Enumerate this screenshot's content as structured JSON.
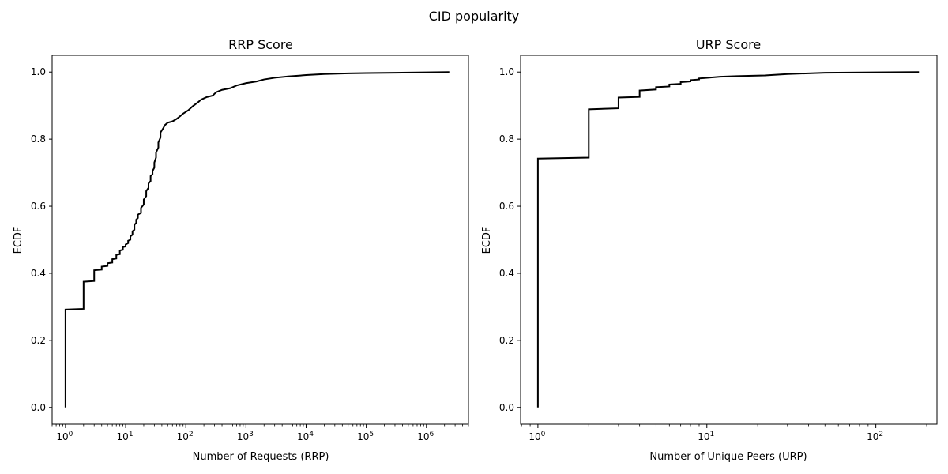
{
  "figure_title": "CID popularity",
  "chart_data": [
    {
      "type": "line",
      "title": "RRP Score",
      "xlabel": "Number of Requests (RRP)",
      "ylabel": "ECDF",
      "xscale": "log",
      "xlim": [
        0.6,
        5000000
      ],
      "ylim": [
        -0.05,
        1.05
      ],
      "xticks": [
        {
          "value": 1,
          "base": "10",
          "exp": "0"
        },
        {
          "value": 10,
          "base": "10",
          "exp": "1"
        },
        {
          "value": 100,
          "base": "10",
          "exp": "2"
        },
        {
          "value": 1000,
          "base": "10",
          "exp": "3"
        },
        {
          "value": 10000,
          "base": "10",
          "exp": "4"
        },
        {
          "value": 100000,
          "base": "10",
          "exp": "5"
        },
        {
          "value": 1000000,
          "base": "10",
          "exp": "6"
        }
      ],
      "yticks": [
        {
          "value": 0.0,
          "label": "0.0"
        },
        {
          "value": 0.2,
          "label": "0.2"
        },
        {
          "value": 0.4,
          "label": "0.4"
        },
        {
          "value": 0.6,
          "label": "0.6"
        },
        {
          "value": 0.8,
          "label": "0.8"
        },
        {
          "value": 1.0,
          "label": "1.0"
        }
      ],
      "grid": false,
      "color": "#000000",
      "step": true,
      "points": [
        [
          1,
          0.0
        ],
        [
          1,
          0.292
        ],
        [
          2,
          0.294
        ],
        [
          2,
          0.375
        ],
        [
          3,
          0.377
        ],
        [
          3,
          0.409
        ],
        [
          4,
          0.411
        ],
        [
          4,
          0.42
        ],
        [
          5,
          0.422
        ],
        [
          5,
          0.43
        ],
        [
          6,
          0.432
        ],
        [
          6,
          0.442
        ],
        [
          7,
          0.444
        ],
        [
          7,
          0.455
        ],
        [
          8,
          0.457
        ],
        [
          8,
          0.468
        ],
        [
          9,
          0.47
        ],
        [
          9,
          0.478
        ],
        [
          10,
          0.48
        ],
        [
          10,
          0.486
        ],
        [
          11,
          0.49
        ],
        [
          11,
          0.497
        ],
        [
          12,
          0.5
        ],
        [
          12,
          0.51
        ],
        [
          13,
          0.515
        ],
        [
          13,
          0.525
        ],
        [
          14,
          0.53
        ],
        [
          14,
          0.545
        ],
        [
          15,
          0.55
        ],
        [
          15,
          0.56
        ],
        [
          16,
          0.565
        ],
        [
          16,
          0.575
        ],
        [
          18,
          0.58
        ],
        [
          18,
          0.595
        ],
        [
          20,
          0.605
        ],
        [
          20,
          0.62
        ],
        [
          22,
          0.63
        ],
        [
          22,
          0.645
        ],
        [
          24,
          0.655
        ],
        [
          24,
          0.668
        ],
        [
          26,
          0.675
        ],
        [
          26,
          0.69
        ],
        [
          28,
          0.695
        ],
        [
          28,
          0.705
        ],
        [
          30,
          0.715
        ],
        [
          30,
          0.73
        ],
        [
          32,
          0.745
        ],
        [
          32,
          0.76
        ],
        [
          35,
          0.775
        ],
        [
          35,
          0.79
        ],
        [
          38,
          0.805
        ],
        [
          38,
          0.82
        ],
        [
          42,
          0.832
        ],
        [
          45,
          0.842
        ],
        [
          50,
          0.849
        ],
        [
          60,
          0.853
        ],
        [
          70,
          0.86
        ],
        [
          80,
          0.868
        ],
        [
          90,
          0.876
        ],
        [
          110,
          0.886
        ],
        [
          130,
          0.898
        ],
        [
          160,
          0.91
        ],
        [
          180,
          0.918
        ],
        [
          220,
          0.925
        ],
        [
          280,
          0.93
        ],
        [
          320,
          0.94
        ],
        [
          400,
          0.947
        ],
        [
          550,
          0.952
        ],
        [
          700,
          0.96
        ],
        [
          1000,
          0.967
        ],
        [
          1500,
          0.972
        ],
        [
          2000,
          0.978
        ],
        [
          3000,
          0.983
        ],
        [
          5000,
          0.987
        ],
        [
          10000,
          0.991
        ],
        [
          20000,
          0.994
        ],
        [
          50000,
          0.996
        ],
        [
          100000,
          0.997
        ],
        [
          300000,
          0.998
        ],
        [
          1000000,
          0.999
        ],
        [
          2400000,
          1.0
        ]
      ]
    },
    {
      "type": "line",
      "title": "URP Score",
      "xlabel": "Number of Unique Peers (URP)",
      "ylabel": "ECDF",
      "xscale": "log",
      "xlim": [
        0.79,
        230
      ],
      "ylim": [
        -0.05,
        1.05
      ],
      "xticks": [
        {
          "value": 1,
          "base": "10",
          "exp": "0"
        },
        {
          "value": 10,
          "base": "10",
          "exp": "1"
        },
        {
          "value": 100,
          "base": "10",
          "exp": "2"
        }
      ],
      "yticks": [
        {
          "value": 0.0,
          "label": "0.0"
        },
        {
          "value": 0.2,
          "label": "0.2"
        },
        {
          "value": 0.4,
          "label": "0.4"
        },
        {
          "value": 0.6,
          "label": "0.6"
        },
        {
          "value": 0.8,
          "label": "0.8"
        },
        {
          "value": 1.0,
          "label": "1.0"
        }
      ],
      "grid": false,
      "color": "#000000",
      "step": true,
      "points": [
        [
          1,
          0.0
        ],
        [
          1,
          0.742
        ],
        [
          2,
          0.745
        ],
        [
          2,
          0.889
        ],
        [
          3,
          0.892
        ],
        [
          3,
          0.924
        ],
        [
          4,
          0.926
        ],
        [
          4,
          0.945
        ],
        [
          5,
          0.948
        ],
        [
          5,
          0.955
        ],
        [
          6,
          0.957
        ],
        [
          6,
          0.963
        ],
        [
          7,
          0.965
        ],
        [
          7,
          0.97
        ],
        [
          8,
          0.972
        ],
        [
          8,
          0.976
        ],
        [
          9,
          0.978
        ],
        [
          9,
          0.981
        ],
        [
          12,
          0.986
        ],
        [
          15,
          0.988
        ],
        [
          22,
          0.99
        ],
        [
          30,
          0.994
        ],
        [
          50,
          0.998
        ],
        [
          100,
          0.999
        ],
        [
          180,
          1.0
        ]
      ]
    }
  ]
}
